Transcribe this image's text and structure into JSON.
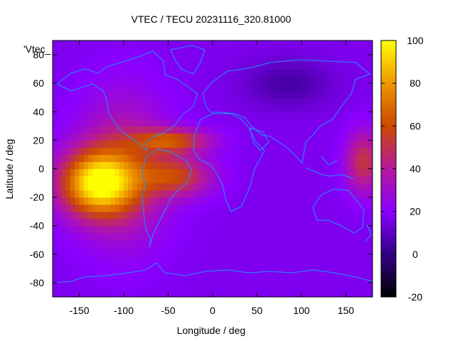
{
  "chart_data": {
    "type": "heatmap",
    "title": "VTEC / TECU 20231116_320.81000",
    "xlabel": "Longitude / deg",
    "ylabel": "Latitude / deg",
    "legend_label": "'Vtec_",
    "xlim": [
      -180,
      180
    ],
    "ylim": [
      -90,
      90
    ],
    "x_ticks": [
      -150,
      -100,
      -50,
      0,
      50,
      100,
      150
    ],
    "y_ticks": [
      -80,
      -60,
      -40,
      -20,
      0,
      20,
      40,
      60,
      80
    ],
    "colorbar": {
      "range": [
        -20,
        100
      ],
      "ticks": [
        -20,
        0,
        20,
        40,
        60,
        80,
        100
      ],
      "palette": "gnuplot black-blue-purple-red-orange-yellow"
    },
    "grid_resolution_deg": 5,
    "coastline_color": "#1e90ff",
    "features": [
      {
        "name": "main_eia_peak",
        "lon": -130,
        "lat": -10,
        "vtec": 90
      },
      {
        "name": "north_crest",
        "lon": -45,
        "lat": 20,
        "vtec": 62
      },
      {
        "name": "south_crest",
        "lon": -40,
        "lat": -5,
        "vtec": 58
      },
      {
        "name": "pacific_east_band",
        "lon": 170,
        "lat": 5,
        "vtec": 52
      },
      {
        "name": "background_min",
        "lon": 85,
        "lat": 60,
        "vtec": 4
      }
    ],
    "background_vtec": 17
  }
}
